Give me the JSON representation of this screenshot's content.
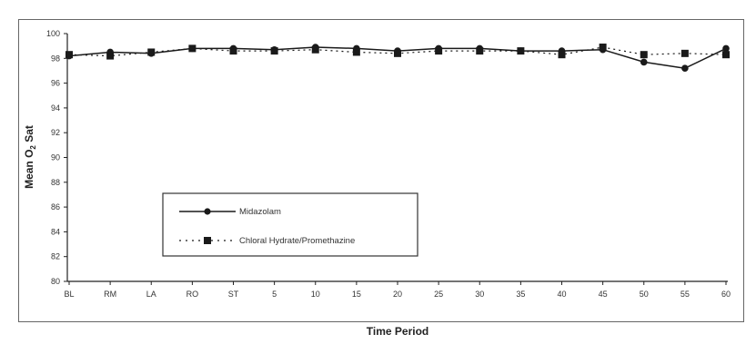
{
  "chart_data": {
    "type": "line",
    "title": "",
    "xlabel": "Time Period",
    "ylabel": "Mean O",
    "ylabel_subscript": "2",
    "ylabel_suffix": " Sat",
    "categories": [
      "BL",
      "RM",
      "LA",
      "RO",
      "ST",
      "5",
      "10",
      "15",
      "20",
      "25",
      "30",
      "35",
      "40",
      "45",
      "50",
      "55",
      "60"
    ],
    "ylim": [
      80,
      100
    ],
    "yticks": [
      "80",
      "82",
      "84",
      "86",
      "88",
      "90",
      "92",
      "94",
      "96",
      "98",
      "100"
    ],
    "grid": false,
    "legend_position": "lower-left",
    "series": [
      {
        "name": "Midazolam",
        "values": [
          98.2,
          98.5,
          98.4,
          98.8,
          98.8,
          98.7,
          98.9,
          98.8,
          98.6,
          98.8,
          98.8,
          98.6,
          98.6,
          98.7,
          97.7,
          97.2,
          98.8
        ],
        "marker": "circle",
        "line_style": "solid",
        "color": "#1a1a1a"
      },
      {
        "name": "Chloral Hydrate/Promethazine",
        "values": [
          98.3,
          98.2,
          98.5,
          98.8,
          98.6,
          98.6,
          98.7,
          98.5,
          98.4,
          98.6,
          98.6,
          98.6,
          98.3,
          98.9,
          98.3,
          98.4,
          98.3
        ],
        "marker": "square",
        "line_style": "dotted",
        "color": "#1a1a1a"
      }
    ]
  }
}
